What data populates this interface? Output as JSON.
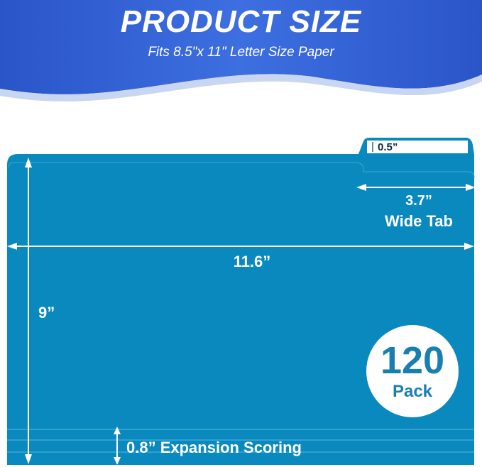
{
  "header": {
    "title": "PRODUCT SIZE",
    "subtitle": "Fits 8.5\"x 11\" Letter Size Paper"
  },
  "folder": {
    "color": "#0a89bf",
    "tab_height": "0.5”",
    "tab_width": "3.7”",
    "tab_width_label": "Wide Tab",
    "width": "11.6”",
    "height": "9”",
    "expansion": "0.8” Expansion Scoring"
  },
  "badge": {
    "count": "120",
    "label": "Pack"
  }
}
